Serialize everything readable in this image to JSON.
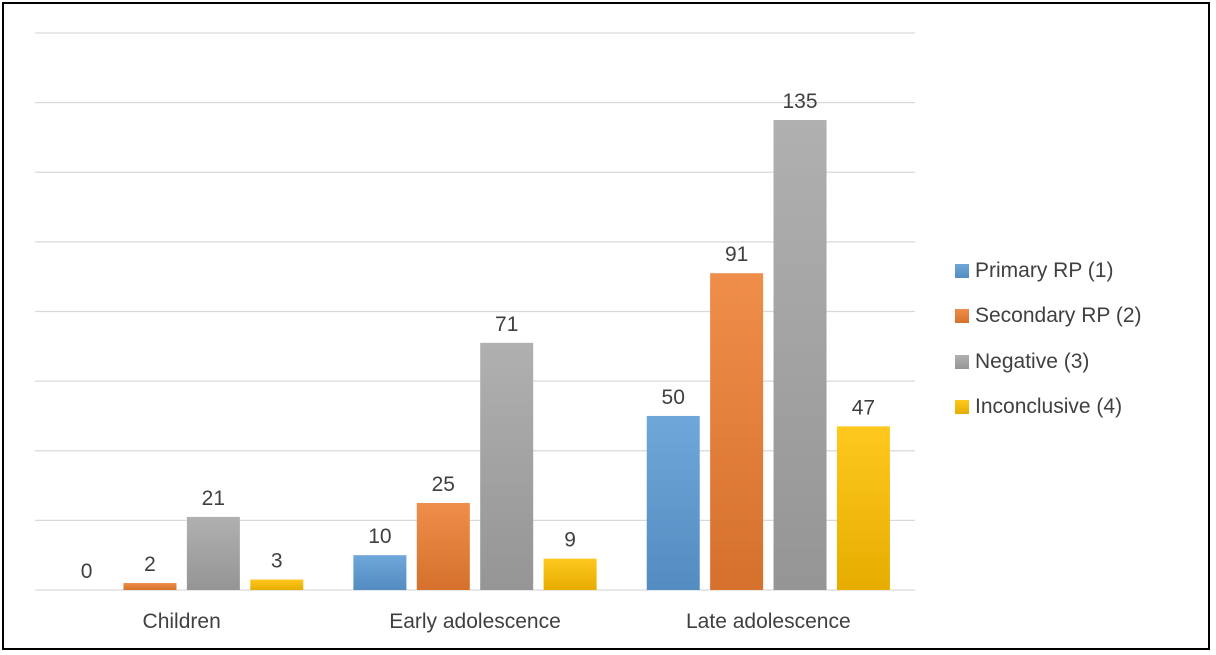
{
  "chart_data": {
    "type": "bar",
    "categories": [
      "Children",
      "Early adolescence",
      "Late adolescence"
    ],
    "series": [
      {
        "name": "Primary RP (1)",
        "values": [
          0,
          10,
          50
        ],
        "color": "#5B9BD5"
      },
      {
        "name": "Secondary RP (2)",
        "values": [
          2,
          25,
          91
        ],
        "color": "#ED7D31"
      },
      {
        "name": "Negative (3)",
        "values": [
          21,
          71,
          135
        ],
        "color": "#A5A5A5"
      },
      {
        "name": "Inconclusive (4)",
        "values": [
          3,
          9,
          47
        ],
        "color": "#FFC000"
      }
    ],
    "ylim": [
      0,
      160
    ],
    "grid": true,
    "legend": "right"
  }
}
